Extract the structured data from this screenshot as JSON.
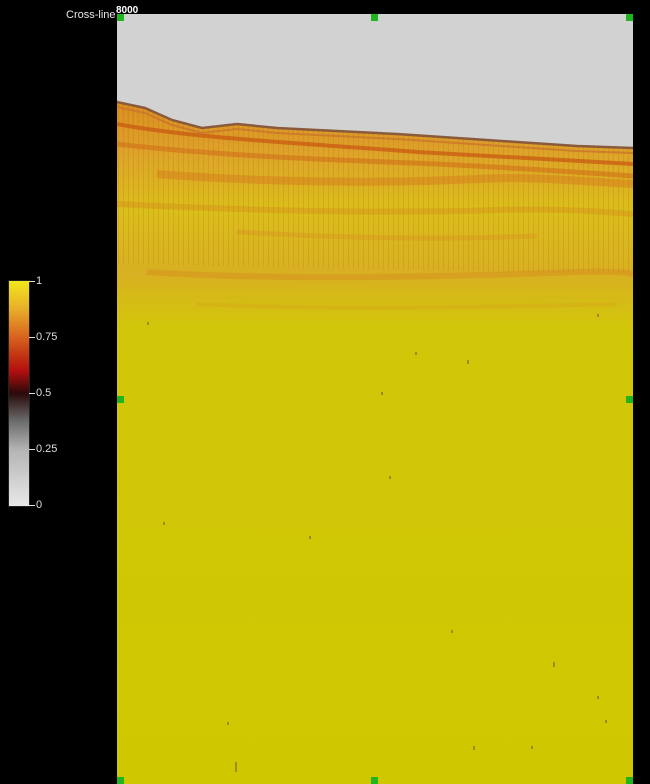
{
  "axis": {
    "label": "Cross-line",
    "value": "8000"
  },
  "colorbar": {
    "ticks": [
      "1",
      "0.75",
      "0.5",
      "0.25",
      "0"
    ]
  },
  "colors": {
    "background": "#000000",
    "sky": "#d2d2d2",
    "seafloor_line": "#8a5a3a",
    "deep_section": "#cfc800",
    "shallow_section": "#d8a020",
    "handle": "#1fb51f"
  }
}
